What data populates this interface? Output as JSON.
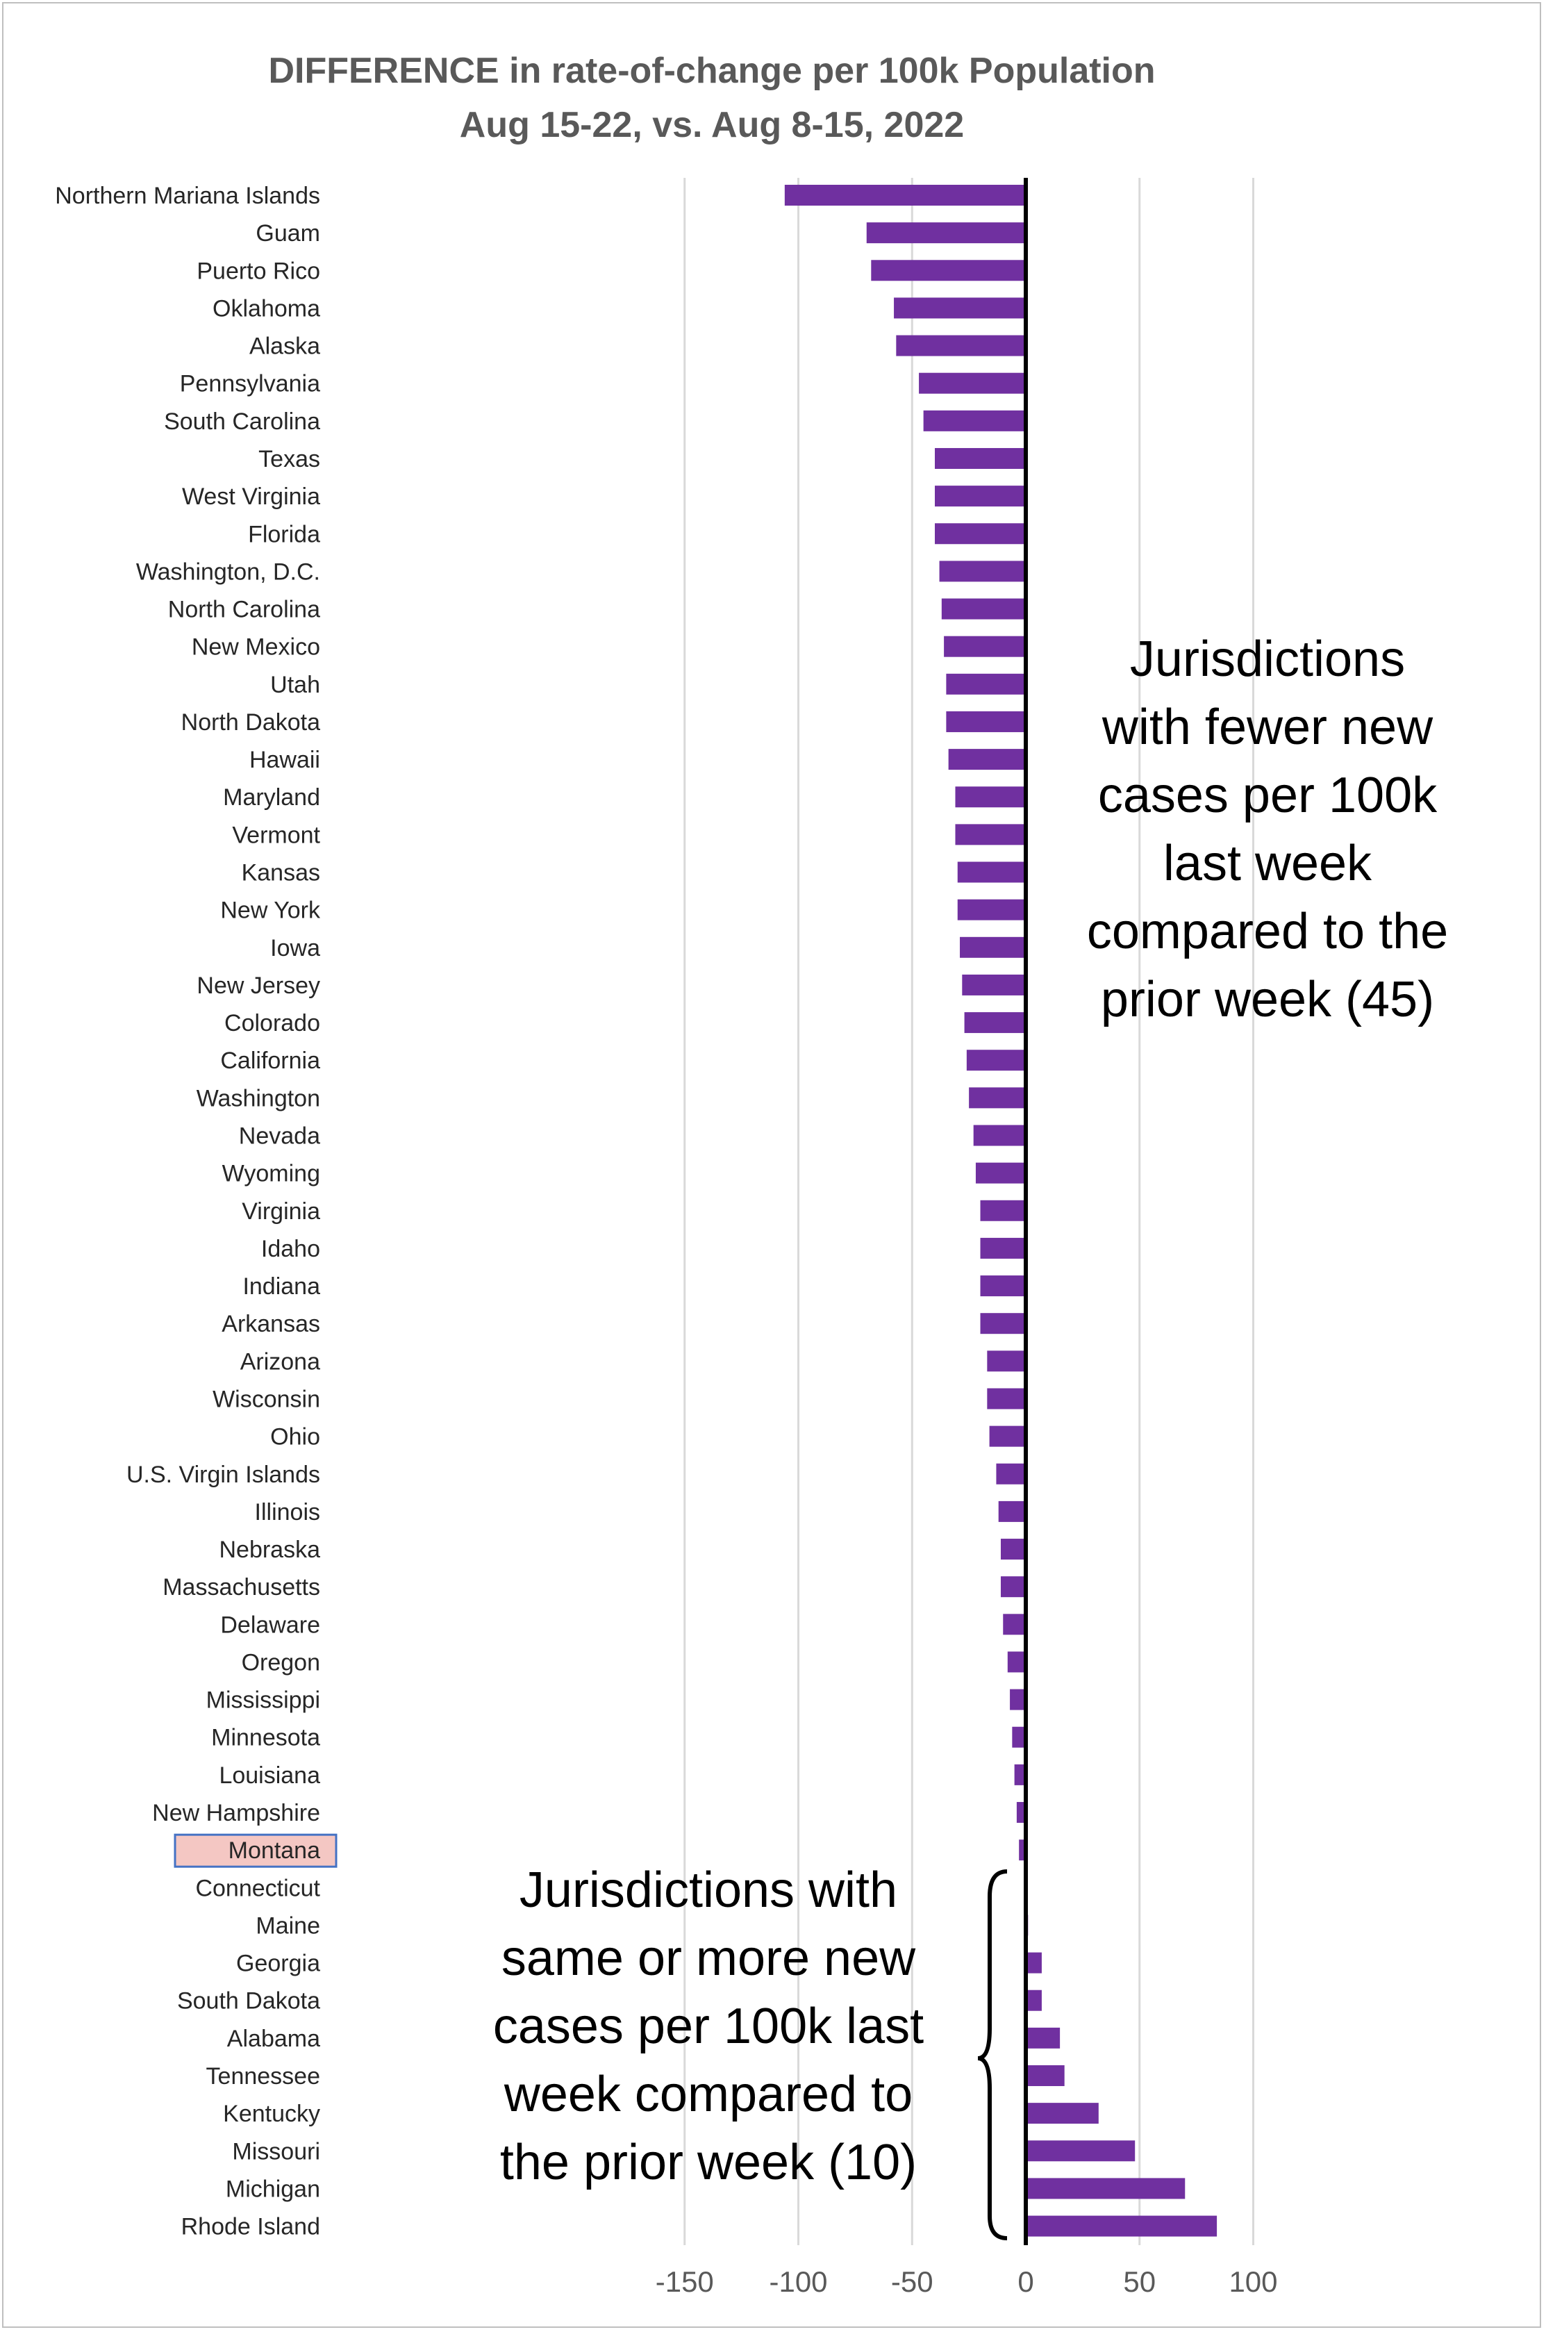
{
  "chart_data": {
    "type": "bar",
    "orientation": "horizontal",
    "title": "DIFFERENCE in rate-of-change per 100k Population",
    "subtitle": "Aug 15-22, vs. Aug 8-15, 2022",
    "xlabel": "",
    "ylabel": "",
    "xlim": [
      -150,
      100
    ],
    "xticks": [
      -150,
      -100,
      -50,
      0,
      50,
      100
    ],
    "grid": true,
    "bar_color": "#7030a0",
    "highlight": {
      "category": "Montana",
      "fill": "#f4c7c3",
      "border": "#4472c4"
    },
    "categories": [
      "Northern Mariana Islands",
      "Guam",
      "Puerto Rico",
      "Oklahoma",
      "Alaska",
      "Pennsylvania",
      "South Carolina",
      "Texas",
      "West Virginia",
      "Florida",
      "Washington, D.C.",
      "North Carolina",
      "New Mexico",
      "Utah",
      "North Dakota",
      "Hawaii",
      "Maryland",
      "Vermont",
      "Kansas",
      "New York",
      "Iowa",
      "New Jersey",
      "Colorado",
      "California",
      "Washington",
      "Nevada",
      "Wyoming",
      "Virginia",
      "Idaho",
      "Indiana",
      "Arkansas",
      "Arizona",
      "Wisconsin",
      "Ohio",
      "U.S. Virgin Islands",
      "Illinois",
      "Nebraska",
      "Massachusetts",
      "Delaware",
      "Oregon",
      "Mississippi",
      "Minnesota",
      "Louisiana",
      "New Hampshire",
      "Montana",
      "Connecticut",
      "Maine",
      "Georgia",
      "South Dakota",
      "Alabama",
      "Tennessee",
      "Kentucky",
      "Missouri",
      "Michigan",
      "Rhode Island"
    ],
    "values": [
      -106,
      -70,
      -68,
      -58,
      -57,
      -47,
      -45,
      -40,
      -40,
      -40,
      -38,
      -37,
      -36,
      -35,
      -35,
      -34,
      -31,
      -31,
      -30,
      -30,
      -29,
      -28,
      -27,
      -26,
      -25,
      -23,
      -22,
      -20,
      -20,
      -20,
      -20,
      -17,
      -17,
      -16,
      -13,
      -12,
      -11,
      -11,
      -10,
      -8,
      -7,
      -6,
      -5,
      -4,
      -3,
      0,
      1,
      7,
      7,
      15,
      17,
      32,
      48,
      70,
      84
    ],
    "annotations": [
      "Jurisdictions\nwith fewer new\ncases per 100k\nlast week\ncompared to the\nprior week (45)",
      "Jurisdictions with\nsame or more new\ncases per 100k last\nweek compared to\nthe prior week (10)"
    ]
  }
}
